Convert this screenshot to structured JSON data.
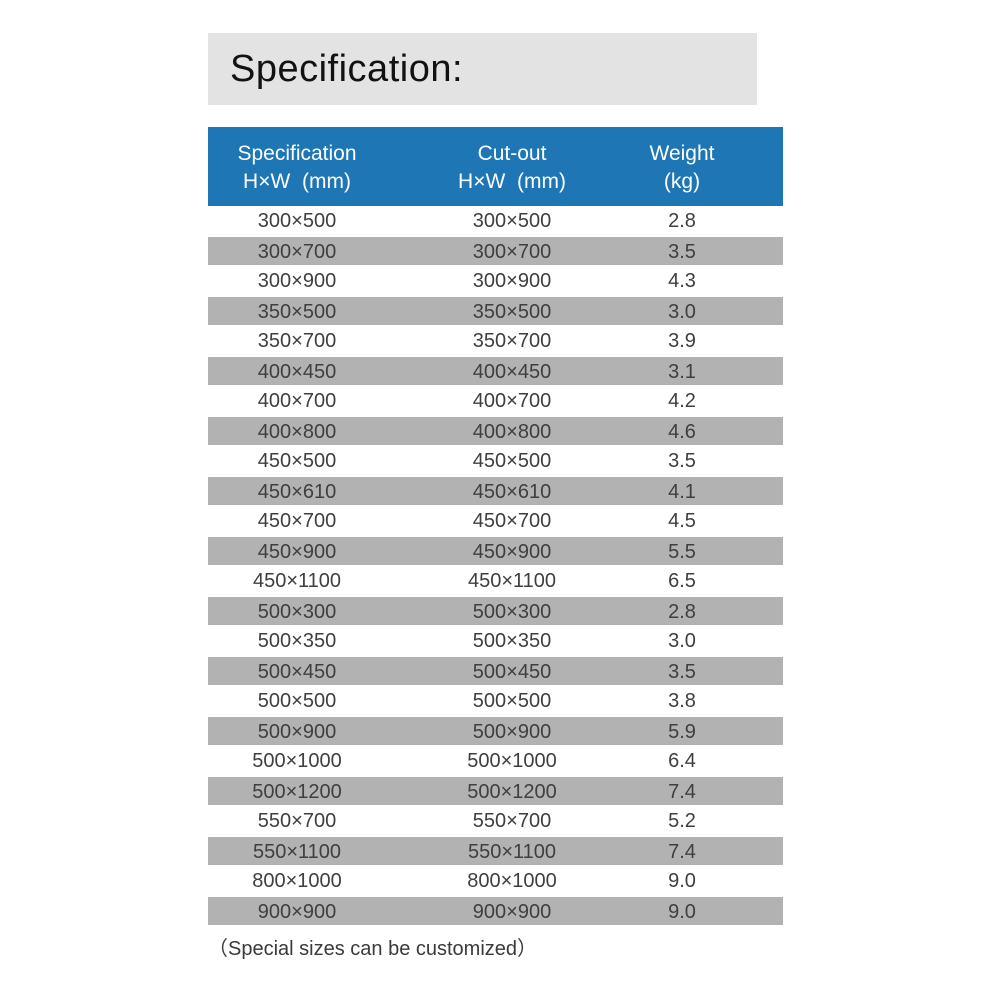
{
  "page": {
    "title": "Specification:",
    "footnote": "（Special sizes can be customized）"
  },
  "colors": {
    "header_bg": "#1e76b4",
    "row_alt_bg": "#b2b2b2",
    "title_bg": "#e3e3e3",
    "data_text": "#3f3f3f"
  },
  "table": {
    "columns": [
      {
        "line1": "Specification",
        "line2": "H×W  (mm)"
      },
      {
        "line1": "Cut-out",
        "line2": "H×W  (mm)"
      },
      {
        "line1": "Weight",
        "line2": "(kg)"
      }
    ],
    "rows": [
      {
        "spec": "300×500",
        "cutout": "300×500",
        "weight": "2.8"
      },
      {
        "spec": "300×700",
        "cutout": "300×700",
        "weight": "3.5"
      },
      {
        "spec": "300×900",
        "cutout": "300×900",
        "weight": "4.3"
      },
      {
        "spec": "350×500",
        "cutout": "350×500",
        "weight": "3.0"
      },
      {
        "spec": "350×700",
        "cutout": "350×700",
        "weight": "3.9"
      },
      {
        "spec": "400×450",
        "cutout": "400×450",
        "weight": "3.1"
      },
      {
        "spec": "400×700",
        "cutout": "400×700",
        "weight": "4.2"
      },
      {
        "spec": "400×800",
        "cutout": "400×800",
        "weight": "4.6"
      },
      {
        "spec": "450×500",
        "cutout": "450×500",
        "weight": "3.5"
      },
      {
        "spec": "450×610",
        "cutout": "450×610",
        "weight": "4.1"
      },
      {
        "spec": "450×700",
        "cutout": "450×700",
        "weight": "4.5"
      },
      {
        "spec": "450×900",
        "cutout": "450×900",
        "weight": "5.5"
      },
      {
        "spec": "450×1100",
        "cutout": "450×1100",
        "weight": "6.5"
      },
      {
        "spec": "500×300",
        "cutout": "500×300",
        "weight": "2.8"
      },
      {
        "spec": "500×350",
        "cutout": "500×350",
        "weight": "3.0"
      },
      {
        "spec": "500×450",
        "cutout": "500×450",
        "weight": "3.5"
      },
      {
        "spec": "500×500",
        "cutout": "500×500",
        "weight": "3.8"
      },
      {
        "spec": "500×900",
        "cutout": "500×900",
        "weight": "5.9"
      },
      {
        "spec": "500×1000",
        "cutout": "500×1000",
        "weight": "6.4"
      },
      {
        "spec": "500×1200",
        "cutout": "500×1200",
        "weight": "7.4"
      },
      {
        "spec": "550×700",
        "cutout": "550×700",
        "weight": "5.2"
      },
      {
        "spec": "550×1100",
        "cutout": "550×1100",
        "weight": "7.4"
      },
      {
        "spec": "800×1000",
        "cutout": "800×1000",
        "weight": "9.0"
      },
      {
        "spec": "900×900",
        "cutout": "900×900",
        "weight": "9.0"
      }
    ]
  }
}
